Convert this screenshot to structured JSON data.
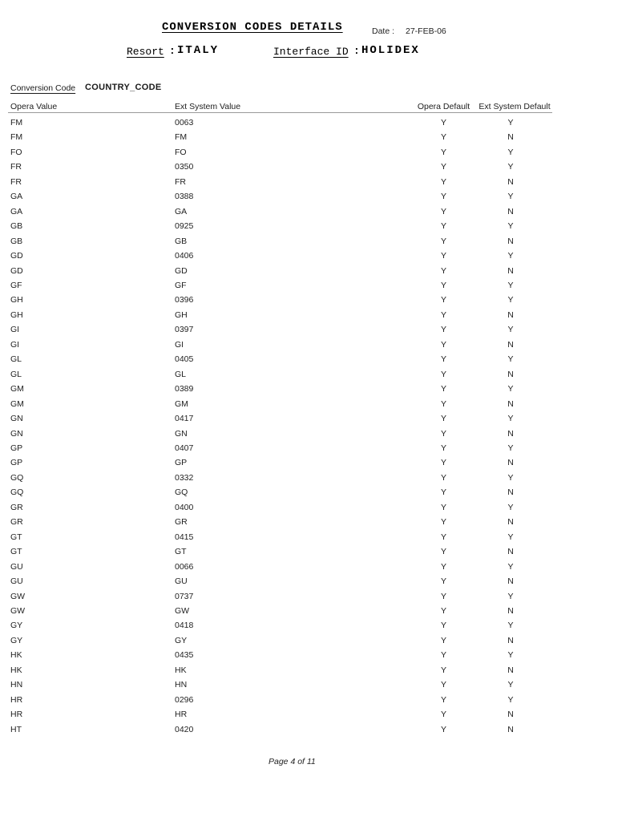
{
  "page": {
    "title": "CONVERSION CODES DETAILS",
    "date_label": "Date :",
    "date_value": "27-FEB-06",
    "resort_label": "Resort",
    "resort_separator": ":",
    "resort_value": "ITALY",
    "interface_label": "Interface ID",
    "interface_separator": ":",
    "interface_value": "HOLIDEX",
    "footer": "Page 4 of 11"
  },
  "section": {
    "conversion_code_label": "Conversion Code",
    "conversion_code_value": "COUNTRY_CODE"
  },
  "table": {
    "headers": [
      "Opera Value",
      "Ext System Value",
      "Opera Default",
      "Ext System Default"
    ],
    "rows": [
      [
        "FM",
        "0063",
        "Y",
        "Y"
      ],
      [
        "FM",
        "FM",
        "Y",
        "N"
      ],
      [
        "FO",
        "FO",
        "Y",
        "Y"
      ],
      [
        "FR",
        "0350",
        "Y",
        "Y"
      ],
      [
        "FR",
        "FR",
        "Y",
        "N"
      ],
      [
        "GA",
        "0388",
        "Y",
        "Y"
      ],
      [
        "GA",
        "GA",
        "Y",
        "N"
      ],
      [
        "GB",
        "0925",
        "Y",
        "Y"
      ],
      [
        "GB",
        "GB",
        "Y",
        "N"
      ],
      [
        "GD",
        "0406",
        "Y",
        "Y"
      ],
      [
        "GD",
        "GD",
        "Y",
        "N"
      ],
      [
        "GF",
        "GF",
        "Y",
        "Y"
      ],
      [
        "GH",
        "0396",
        "Y",
        "Y"
      ],
      [
        "GH",
        "GH",
        "Y",
        "N"
      ],
      [
        "GI",
        "0397",
        "Y",
        "Y"
      ],
      [
        "GI",
        "GI",
        "Y",
        "N"
      ],
      [
        "GL",
        "0405",
        "Y",
        "Y"
      ],
      [
        "GL",
        "GL",
        "Y",
        "N"
      ],
      [
        "GM",
        "0389",
        "Y",
        "Y"
      ],
      [
        "GM",
        "GM",
        "Y",
        "N"
      ],
      [
        "GN",
        "0417",
        "Y",
        "Y"
      ],
      [
        "GN",
        "GN",
        "Y",
        "N"
      ],
      [
        "GP",
        "0407",
        "Y",
        "Y"
      ],
      [
        "GP",
        "GP",
        "Y",
        "N"
      ],
      [
        "GQ",
        "0332",
        "Y",
        "Y"
      ],
      [
        "GQ",
        "GQ",
        "Y",
        "N"
      ],
      [
        "GR",
        "0400",
        "Y",
        "Y"
      ],
      [
        "GR",
        "GR",
        "Y",
        "N"
      ],
      [
        "GT",
        "0415",
        "Y",
        "Y"
      ],
      [
        "GT",
        "GT",
        "Y",
        "N"
      ],
      [
        "GU",
        "0066",
        "Y",
        "Y"
      ],
      [
        "GU",
        "GU",
        "Y",
        "N"
      ],
      [
        "GW",
        "0737",
        "Y",
        "Y"
      ],
      [
        "GW",
        "GW",
        "Y",
        "N"
      ],
      [
        "GY",
        "0418",
        "Y",
        "Y"
      ],
      [
        "GY",
        "GY",
        "Y",
        "N"
      ],
      [
        "HK",
        "0435",
        "Y",
        "Y"
      ],
      [
        "HK",
        "HK",
        "Y",
        "N"
      ],
      [
        "HN",
        "HN",
        "Y",
        "Y"
      ],
      [
        "HR",
        "0296",
        "Y",
        "Y"
      ],
      [
        "HR",
        "HR",
        "Y",
        "N"
      ],
      [
        "HT",
        "0420",
        "Y",
        "N"
      ]
    ]
  }
}
